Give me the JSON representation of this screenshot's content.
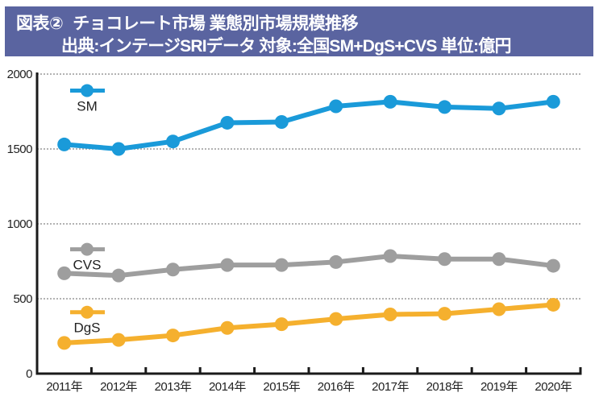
{
  "header": {
    "figure_label": "図表②",
    "title": "チョコレート市場 業態別市場規模推移",
    "source_line": "出典:インテージSRIデータ 対象:全国SM+DgS+CVS 単位:億円"
  },
  "chart_data": {
    "type": "line",
    "title": "チョコレート市場 業態別市場規模推移",
    "subtitle": "出典:インテージSRIデータ 対象:全国SM+DgS+CVS 単位:億円",
    "xlabel": "",
    "ylabel": "億円",
    "categories": [
      "2011年",
      "2012年",
      "2013年",
      "2014年",
      "2015年",
      "2016年",
      "2017年",
      "2018年",
      "2019年",
      "2020年"
    ],
    "ylim": [
      0,
      2000
    ],
    "yticks": [
      0,
      500,
      1000,
      1500,
      2000
    ],
    "grid": "horizontal dotted",
    "legend": "inline-left",
    "series": [
      {
        "name": "SM",
        "color": "#1a9ad9",
        "values": [
          1530,
          1500,
          1550,
          1675,
          1680,
          1785,
          1815,
          1780,
          1770,
          1815
        ]
      },
      {
        "name": "CVS",
        "color": "#9e9e9e",
        "values": [
          670,
          655,
          695,
          725,
          725,
          745,
          785,
          765,
          765,
          720
        ]
      },
      {
        "name": "DgS",
        "color": "#f5b02e",
        "values": [
          205,
          225,
          255,
          305,
          330,
          365,
          395,
          400,
          430,
          460
        ]
      }
    ]
  }
}
